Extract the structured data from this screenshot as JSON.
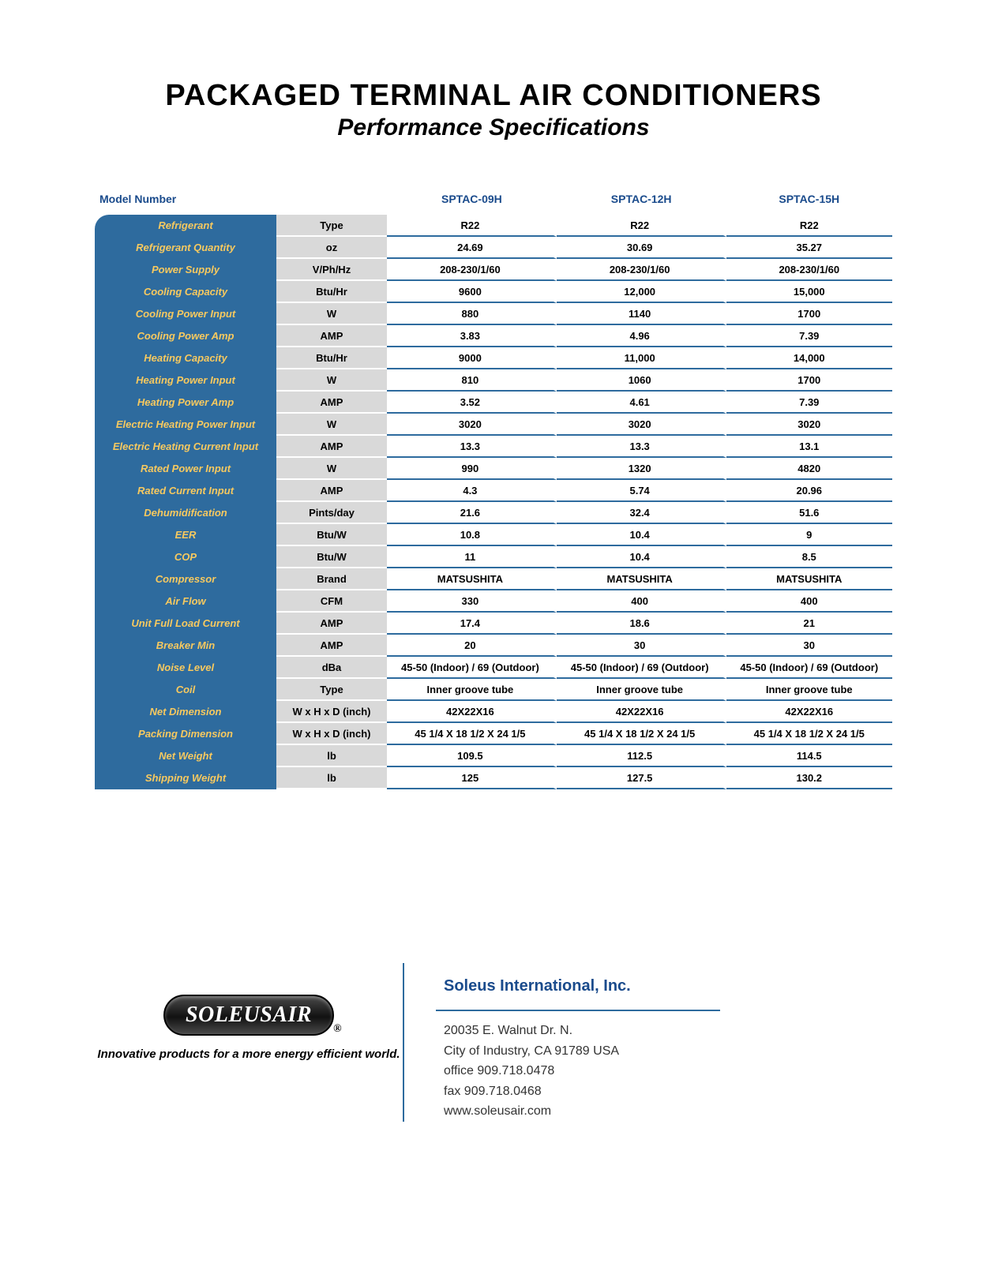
{
  "header": {
    "title": "PACKAGED TERMINAL AIR CONDITIONERS",
    "subtitle": "Performance Specifications"
  },
  "table": {
    "model_label": "Model Number",
    "models": [
      "SPTAC-09H",
      "SPTAC-12H",
      "SPTAC-15H"
    ],
    "rows": [
      {
        "label": "Refrigerant",
        "unit": "Type",
        "vals": [
          "R22",
          "R22",
          "R22"
        ]
      },
      {
        "label": "Refrigerant Quantity",
        "unit": "oz",
        "vals": [
          "24.69",
          "30.69",
          "35.27"
        ]
      },
      {
        "label": "Power Supply",
        "unit": "V/Ph/Hz",
        "vals": [
          "208-230/1/60",
          "208-230/1/60",
          "208-230/1/60"
        ]
      },
      {
        "label": "Cooling Capacity",
        "unit": "Btu/Hr",
        "vals": [
          "9600",
          "12,000",
          "15,000"
        ]
      },
      {
        "label": "Cooling Power Input",
        "unit": "W",
        "vals": [
          "880",
          "1140",
          "1700"
        ]
      },
      {
        "label": "Cooling Power Amp",
        "unit": "AMP",
        "vals": [
          "3.83",
          "4.96",
          "7.39"
        ]
      },
      {
        "label": "Heating Capacity",
        "unit": "Btu/Hr",
        "vals": [
          "9000",
          "11,000",
          "14,000"
        ]
      },
      {
        "label": "Heating Power Input",
        "unit": "W",
        "vals": [
          "810",
          "1060",
          "1700"
        ]
      },
      {
        "label": "Heating Power Amp",
        "unit": "AMP",
        "vals": [
          "3.52",
          "4.61",
          "7.39"
        ]
      },
      {
        "label": "Electric Heating Power Input",
        "unit": "W",
        "vals": [
          "3020",
          "3020",
          "3020"
        ]
      },
      {
        "label": "Electric Heating Current Input",
        "unit": "AMP",
        "vals": [
          "13.3",
          "13.3",
          "13.1"
        ]
      },
      {
        "label": "Rated Power Input",
        "unit": "W",
        "vals": [
          "990",
          "1320",
          "4820"
        ]
      },
      {
        "label": "Rated Current Input",
        "unit": "AMP",
        "vals": [
          "4.3",
          "5.74",
          "20.96"
        ]
      },
      {
        "label": "Dehumidification",
        "unit": "Pints/day",
        "vals": [
          "21.6",
          "32.4",
          "51.6"
        ]
      },
      {
        "label": "EER",
        "unit": "Btu/W",
        "vals": [
          "10.8",
          "10.4",
          "9"
        ]
      },
      {
        "label": "COP",
        "unit": "Btu/W",
        "vals": [
          "11",
          "10.4",
          "8.5"
        ]
      },
      {
        "label": "Compressor",
        "unit": "Brand",
        "vals": [
          "MATSUSHITA",
          "MATSUSHITA",
          "MATSUSHITA"
        ]
      },
      {
        "label": "Air Flow",
        "unit": "CFM",
        "vals": [
          "330",
          "400",
          "400"
        ]
      },
      {
        "label": "Unit Full Load Current",
        "unit": "AMP",
        "vals": [
          "17.4",
          "18.6",
          "21"
        ]
      },
      {
        "label": "Breaker Min",
        "unit": "AMP",
        "vals": [
          "20",
          "30",
          "30"
        ]
      },
      {
        "label": "Noise Level",
        "unit": "dBa",
        "vals": [
          "45-50 (Indoor) / 69 (Outdoor)",
          "45-50 (Indoor) / 69 (Outdoor)",
          "45-50 (Indoor) / 69 (Outdoor)"
        ]
      },
      {
        "label": "Coil",
        "unit": "Type",
        "vals": [
          "Inner groove tube",
          "Inner groove tube",
          "Inner groove tube"
        ]
      },
      {
        "label": "Net Dimension",
        "unit": "W x H x D (inch)",
        "vals": [
          "42X22X16",
          "42X22X16",
          "42X22X16"
        ]
      },
      {
        "label": "Packing Dimension",
        "unit": "W x H x D (inch)",
        "vals": [
          "45 1/4 X 18 1/2 X 24 1/5",
          "45 1/4 X 18 1/2 X 24 1/5",
          "45 1/4 X 18 1/2 X 24 1/5"
        ]
      },
      {
        "label": "Net Weight",
        "unit": "lb",
        "vals": [
          "109.5",
          "112.5",
          "114.5"
        ]
      },
      {
        "label": "Shipping Weight",
        "unit": "lb",
        "vals": [
          "125",
          "127.5",
          "130.2"
        ]
      }
    ],
    "colors": {
      "header_text": "#1a4b8c",
      "label_bg": "#2e6b9e",
      "label_text": "#f7c95f",
      "unit_bg": "#d9d9d9",
      "row_divider": "#2e6b9e"
    }
  },
  "footer": {
    "logo_text": "SOLEUSAIR",
    "tagline": "Innovative products for a more energy efficient world.",
    "company": "Soleus International, Inc.",
    "addr1": "20035 E. Walnut Dr. N.",
    "addr2": "City of Industry, CA 91789 USA",
    "office": "office 909.718.0478",
    "fax": "fax 909.718.0468",
    "web": "www.soleusair.com"
  }
}
